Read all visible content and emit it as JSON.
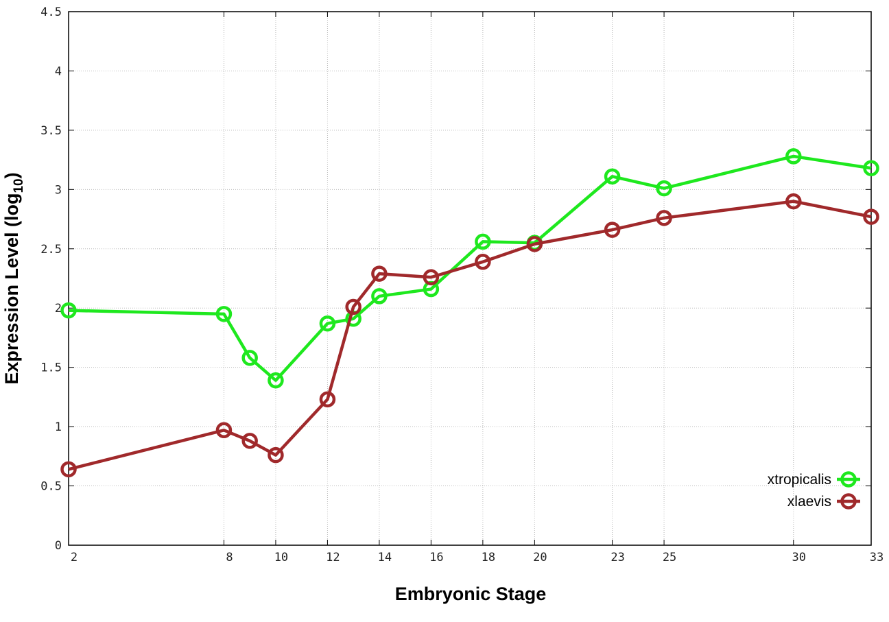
{
  "chart_data": {
    "type": "line",
    "title": "",
    "xlabel": "Embryonic Stage",
    "ylabel": "Expression Level (log",
    "ylabel_sub": "10",
    "ylabel_close": ")",
    "xlim": [
      2,
      33
    ],
    "ylim": [
      0,
      4.5
    ],
    "x_ticks": [
      2,
      8,
      10,
      12,
      14,
      16,
      18,
      20,
      23,
      25,
      30,
      33
    ],
    "y_ticks": [
      0,
      0.5,
      1,
      1.5,
      2,
      2.5,
      3,
      3.5,
      4,
      4.5
    ],
    "y_tick_labels": [
      "0",
      "0.5",
      "1",
      "1.5",
      "2",
      "2.5",
      "3",
      "3.5",
      "4",
      "4.5"
    ],
    "grid": true,
    "legend_position": "bottom-right",
    "x": [
      2,
      8,
      9,
      10,
      12,
      13,
      14,
      16,
      18,
      20,
      23,
      25,
      30,
      33
    ],
    "series": [
      {
        "name": "xtropicalis",
        "color": "#1ee81e",
        "values": [
          1.98,
          1.95,
          1.58,
          1.39,
          1.87,
          1.91,
          2.1,
          2.16,
          2.56,
          2.55,
          3.11,
          3.01,
          3.28,
          3.18
        ]
      },
      {
        "name": "xlaevis",
        "color": "#a0292b",
        "values": [
          0.64,
          0.97,
          0.88,
          0.76,
          1.23,
          2.01,
          2.29,
          2.26,
          2.39,
          2.54,
          2.66,
          2.76,
          2.9,
          2.77
        ]
      }
    ]
  }
}
